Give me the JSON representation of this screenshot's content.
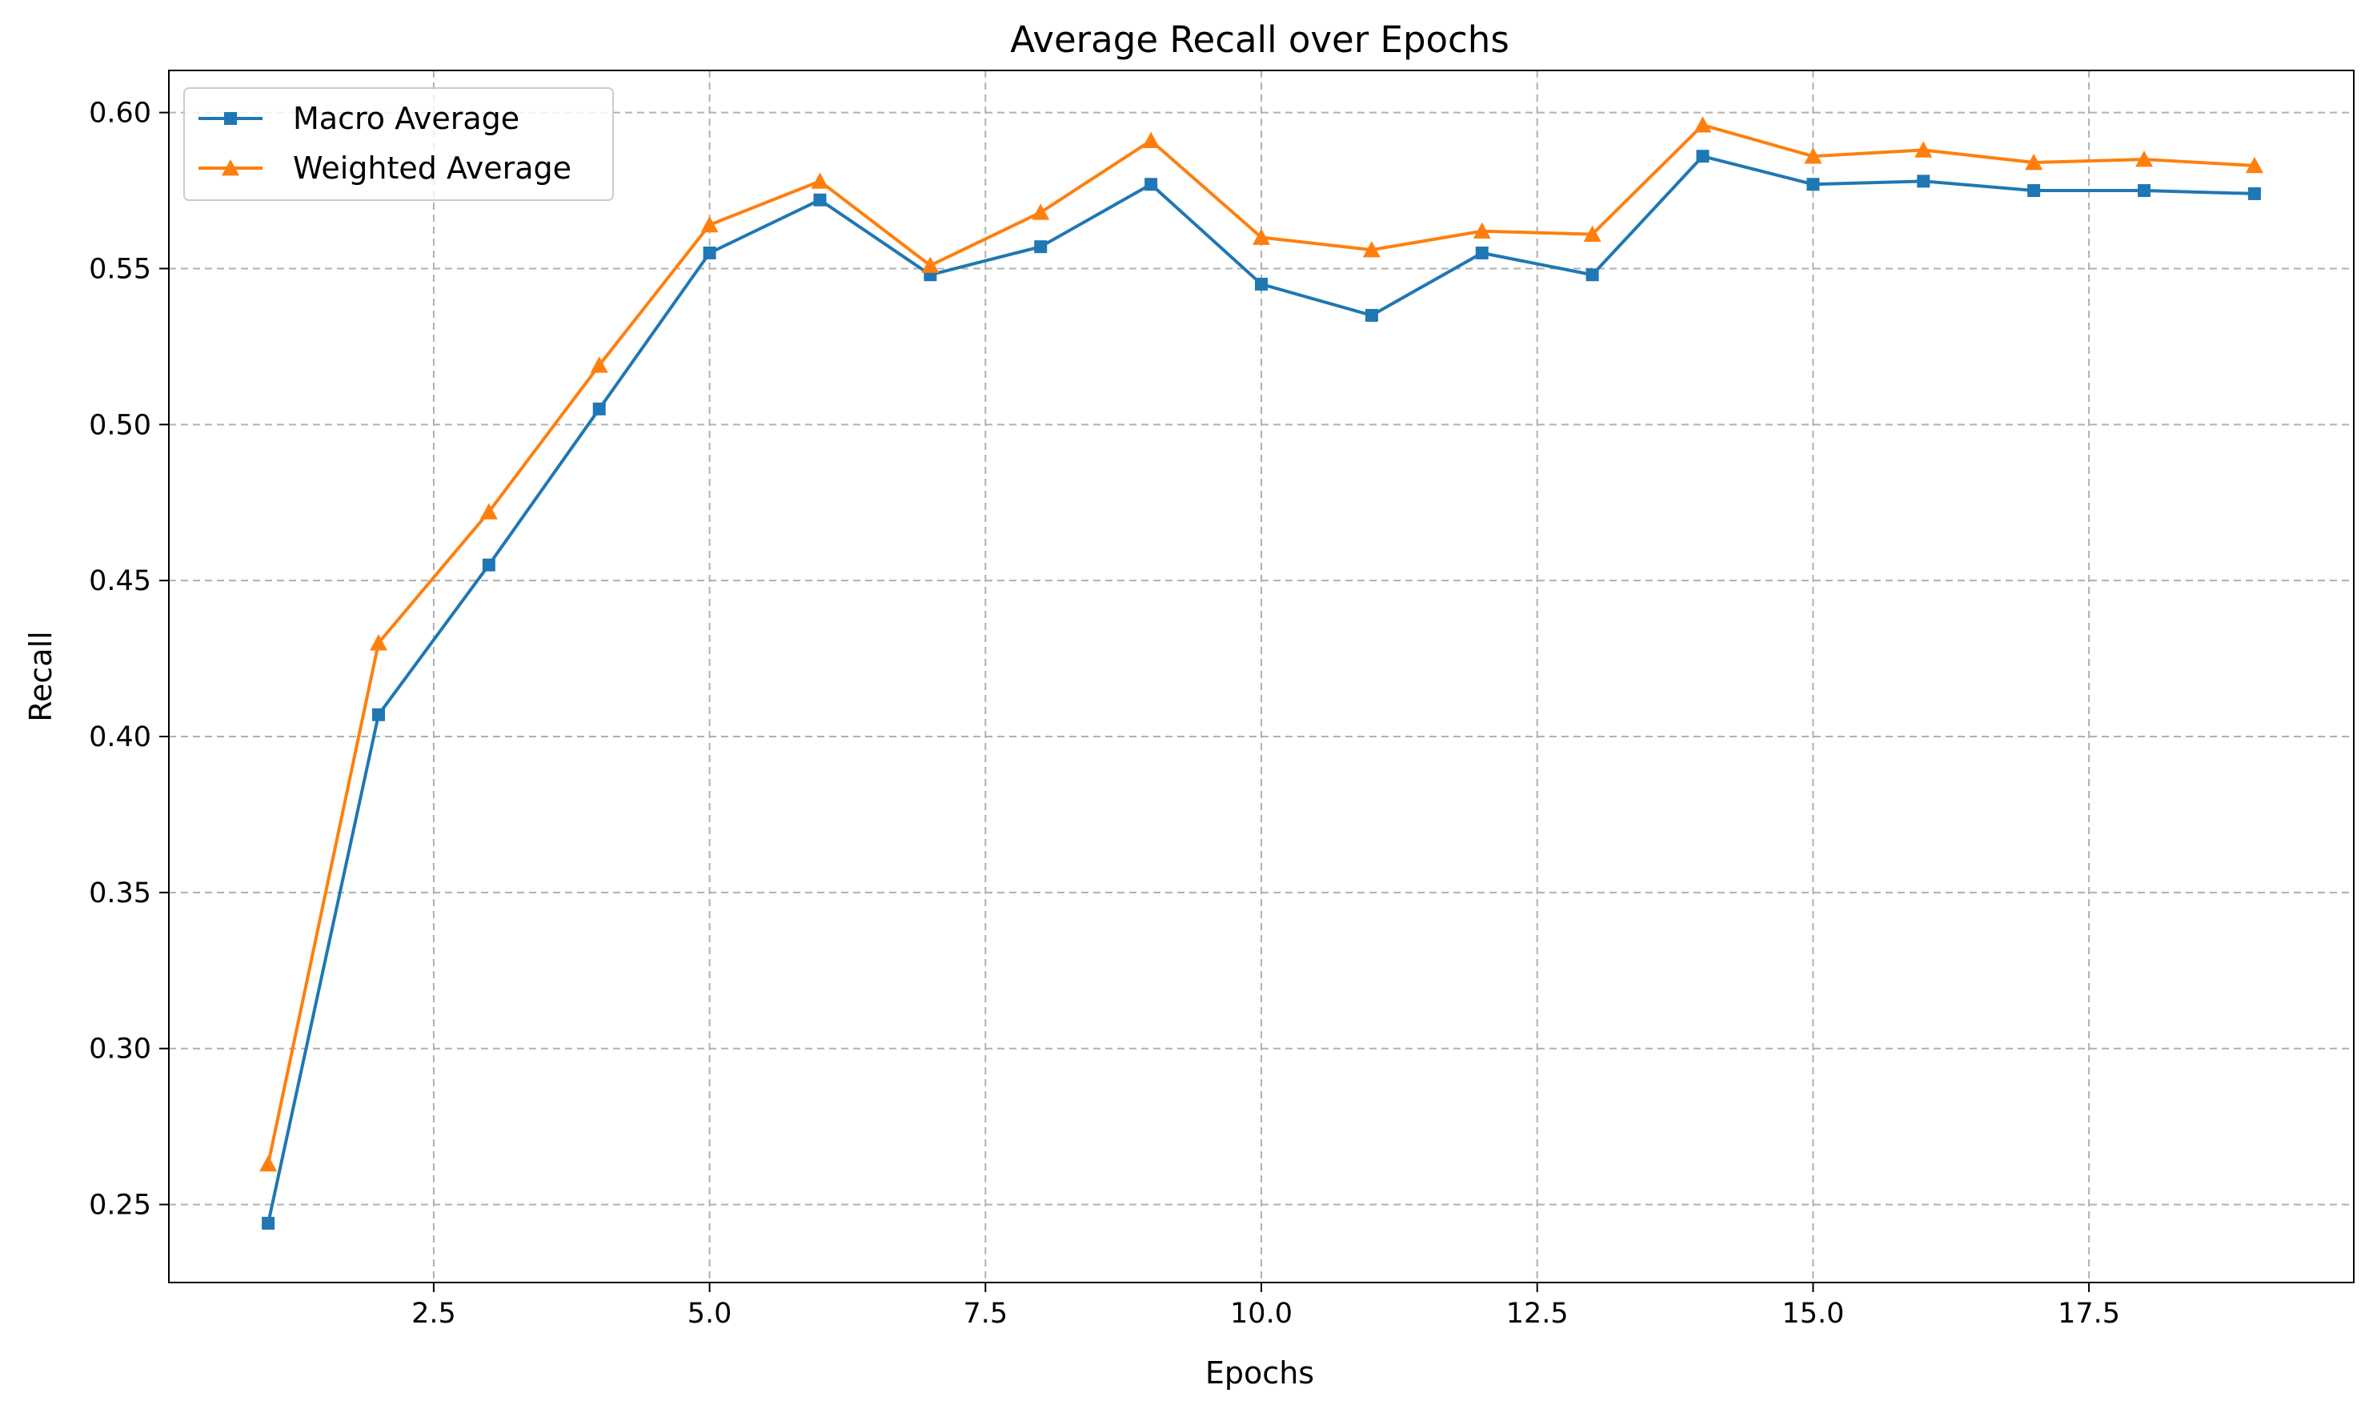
{
  "chart_data": {
    "type": "line",
    "title": "Average Recall over Epochs",
    "xlabel": "Epochs",
    "ylabel": "Recall",
    "xlim": [
      0.1,
      19.9
    ],
    "ylim": [
      0.225,
      0.6135
    ],
    "x_ticks": [
      2.5,
      5.0,
      7.5,
      10.0,
      12.5,
      15.0,
      17.5
    ],
    "x_tick_labels": [
      "2.5",
      "5.0",
      "7.5",
      "10.0",
      "12.5",
      "15.0",
      "17.5"
    ],
    "y_ticks": [
      0.25,
      0.3,
      0.35,
      0.4,
      0.45,
      0.5,
      0.55,
      0.6
    ],
    "y_tick_labels": [
      "0.25",
      "0.30",
      "0.35",
      "0.40",
      "0.45",
      "0.50",
      "0.55",
      "0.60"
    ],
    "grid": true,
    "legend_position": "top-left",
    "x": [
      1,
      2,
      3,
      4,
      5,
      6,
      7,
      8,
      9,
      10,
      11,
      12,
      13,
      14,
      15,
      16,
      17,
      18,
      19
    ],
    "series": [
      {
        "name": "Macro Average",
        "color": "#1f77b4",
        "marker": "square",
        "values": [
          0.244,
          0.407,
          0.455,
          0.505,
          0.555,
          0.572,
          0.548,
          0.557,
          0.577,
          0.545,
          0.535,
          0.555,
          0.548,
          0.586,
          0.577,
          0.578,
          0.575,
          0.575,
          0.574
        ]
      },
      {
        "name": "Weighted Average",
        "color": "#ff7f0e",
        "marker": "triangle",
        "values": [
          0.263,
          0.43,
          0.472,
          0.519,
          0.564,
          0.578,
          0.551,
          0.568,
          0.591,
          0.56,
          0.556,
          0.562,
          0.561,
          0.596,
          0.586,
          0.588,
          0.584,
          0.585,
          0.583
        ]
      }
    ]
  }
}
